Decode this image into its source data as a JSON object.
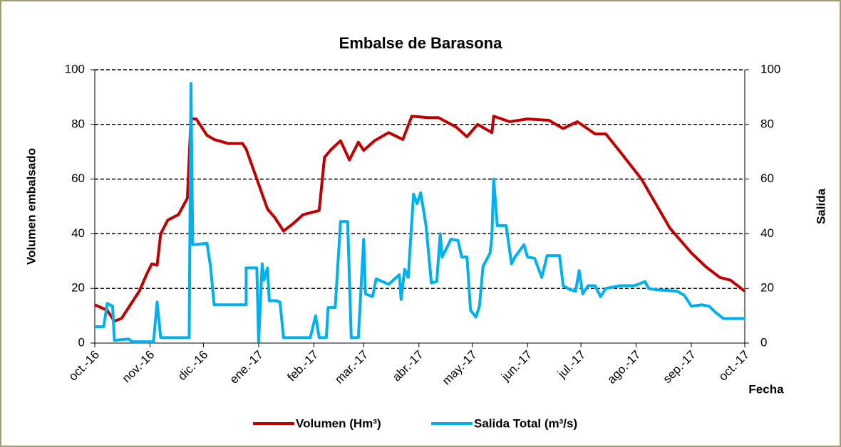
{
  "chart_data": {
    "type": "line",
    "title": "Embalse de Barasona",
    "x_label": "Fecha",
    "y_label": "Volumen embalsado",
    "y2_label": "Salida",
    "xlim": [
      0,
      365
    ],
    "xticks": [
      {
        "value": 0,
        "label": "oct.-16"
      },
      {
        "value": 31,
        "label": "nov.-16"
      },
      {
        "value": 61,
        "label": "dic.-16"
      },
      {
        "value": 92,
        "label": "ene.-17"
      },
      {
        "value": 123,
        "label": "feb.-17"
      },
      {
        "value": 151,
        "label": "mar.-17"
      },
      {
        "value": 182,
        "label": "abr.-17"
      },
      {
        "value": 212,
        "label": "may.-17"
      },
      {
        "value": 243,
        "label": "jun.-17"
      },
      {
        "value": 273,
        "label": "jul.-17"
      },
      {
        "value": 304,
        "label": "ago.-17"
      },
      {
        "value": 335,
        "label": "sep.-17"
      },
      {
        "value": 365,
        "label": "oct.-17"
      }
    ],
    "ylim": [
      0,
      100
    ],
    "yticks": [
      0,
      20,
      40,
      60,
      80,
      100
    ],
    "y2lim": [
      0,
      100
    ],
    "y2ticks": [
      0,
      20,
      40,
      60,
      80,
      100
    ],
    "grid": true,
    "legend": "bottom",
    "series": [
      {
        "name": "Volumen (Hm³)",
        "color": "#c00000",
        "x": [
          0,
          7,
          11,
          15,
          21,
          25,
          29,
          32,
          35,
          37,
          41,
          47,
          52,
          54,
          57,
          63,
          67,
          75,
          83,
          85,
          91,
          97,
          101,
          106,
          111,
          117,
          123,
          126,
          129,
          133,
          138,
          143,
          148,
          151,
          157,
          165,
          173,
          178,
          187,
          193,
          203,
          209,
          215,
          223,
          224,
          233,
          243,
          255,
          263,
          271,
          281,
          287,
          295,
          307,
          323,
          335,
          343,
          351,
          357,
          365
        ],
        "values": [
          14,
          12,
          8,
          9,
          15,
          19,
          25,
          29,
          28.5,
          40,
          45,
          47,
          53,
          82,
          82,
          76,
          74.5,
          73,
          73,
          71,
          60,
          49,
          46,
          41,
          43.5,
          47,
          48,
          48.5,
          68,
          71,
          74,
          67,
          73.5,
          70.5,
          74,
          77,
          74.5,
          83,
          82.5,
          82.5,
          79,
          75.5,
          80,
          77,
          83,
          81,
          82,
          81.5,
          78.5,
          81,
          76.5,
          76.5,
          70,
          60,
          42,
          33,
          28,
          24,
          23,
          19
        ]
      },
      {
        "name": "Salida Total (m³/s)",
        "color": "#00b0f0",
        "axis": "y2",
        "x": [
          0,
          5,
          7,
          10,
          11,
          19,
          21,
          33,
          35,
          37,
          43,
          53,
          54,
          55,
          63,
          65,
          67,
          85,
          85,
          91,
          92,
          94,
          95,
          97,
          98,
          102,
          104,
          106,
          121,
          124,
          126,
          130,
          131,
          135,
          138,
          142,
          144,
          148,
          151,
          152,
          156,
          158,
          165,
          171,
          172,
          174,
          176,
          179,
          181,
          183,
          186,
          189,
          192,
          194,
          195,
          197,
          200,
          204,
          206,
          209,
          211,
          214,
          216,
          218,
          222,
          223,
          224,
          226,
          231,
          234,
          236,
          241,
          243,
          247,
          251,
          254,
          261,
          263,
          267,
          270,
          272,
          274,
          277,
          281,
          284,
          287,
          295,
          303,
          309,
          311,
          315,
          327,
          331,
          335,
          341,
          345,
          349,
          353,
          359,
          365
        ],
        "values": [
          6,
          6,
          14.5,
          13.5,
          1,
          1.5,
          0.5,
          0.5,
          15,
          2,
          2,
          2,
          95,
          36,
          36.5,
          28,
          14,
          14,
          27.5,
          27.5,
          0.5,
          29,
          23,
          27.5,
          15.5,
          15.5,
          15,
          2,
          2,
          10,
          2,
          2,
          13,
          13,
          44.5,
          44.5,
          2,
          2,
          38,
          18,
          17,
          23.5,
          21.5,
          25,
          16,
          27,
          24,
          54.5,
          51,
          55,
          43,
          22,
          22.5,
          40,
          31.5,
          34,
          38,
          37.5,
          31.5,
          31.5,
          12,
          9.5,
          13.5,
          28,
          33,
          39,
          60,
          43,
          43,
          29,
          31.5,
          36,
          31.5,
          31,
          24,
          32,
          32,
          21,
          19.5,
          19,
          26.5,
          18,
          21,
          21,
          17,
          20,
          21,
          21,
          22.5,
          20,
          19.5,
          19,
          17.5,
          13.5,
          14,
          13.5,
          11,
          9,
          9,
          9
        ]
      }
    ]
  }
}
